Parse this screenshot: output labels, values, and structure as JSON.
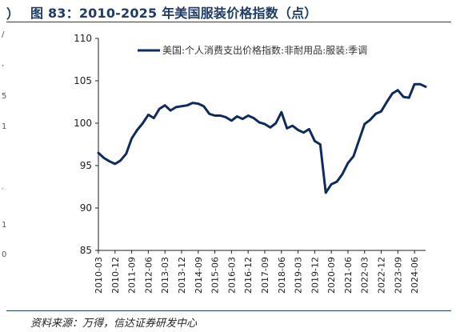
{
  "header": {
    "left_mark": "）",
    "title": "图 83：2010-2025 年美国服装价格指数（点）"
  },
  "left_fragments": [
    "/",
    "’",
    "5",
    "1",
    "′",
    "1",
    "0"
  ],
  "source": "资料来源：万得，信达证券研发中心",
  "chart_data": {
    "type": "line",
    "title": "",
    "xlabel": "",
    "ylabel": "",
    "ylim": [
      85,
      110
    ],
    "yticks": [
      85,
      90,
      95,
      100,
      105,
      110
    ],
    "grid": false,
    "legend_position": "top-left",
    "x_tick_labels": [
      "2010-03",
      "2010-12",
      "2011-09",
      "2012-06",
      "2013-03",
      "2013-12",
      "2014-09",
      "2015-06",
      "2016-03",
      "2016-12",
      "2017-09",
      "2018-06",
      "2019-03",
      "2019-12",
      "2020-09",
      "2021-06",
      "2022-03",
      "2022-12",
      "2023-09",
      "2024-06"
    ],
    "series": [
      {
        "name": "美国:个人消费支出价格指数:非耐用品:服装:季调",
        "color": "#0f2a5c",
        "x": [
          "2010-03",
          "2010-06",
          "2010-09",
          "2010-12",
          "2011-03",
          "2011-06",
          "2011-09",
          "2011-12",
          "2012-03",
          "2012-06",
          "2012-09",
          "2012-12",
          "2013-03",
          "2013-06",
          "2013-09",
          "2013-12",
          "2014-03",
          "2014-06",
          "2014-09",
          "2014-12",
          "2015-03",
          "2015-06",
          "2015-09",
          "2015-12",
          "2016-03",
          "2016-06",
          "2016-09",
          "2016-12",
          "2017-03",
          "2017-06",
          "2017-09",
          "2017-12",
          "2018-03",
          "2018-06",
          "2018-09",
          "2018-12",
          "2019-03",
          "2019-06",
          "2019-09",
          "2019-12",
          "2020-03",
          "2020-06",
          "2020-09",
          "2020-12",
          "2021-03",
          "2021-06",
          "2021-09",
          "2021-12",
          "2022-03",
          "2022-06",
          "2022-09",
          "2022-12",
          "2023-03",
          "2023-06",
          "2023-09",
          "2023-12",
          "2024-03",
          "2024-06",
          "2024-09",
          "2024-12"
        ],
        "values": [
          96.5,
          95.9,
          95.5,
          95.2,
          95.6,
          96.4,
          98.2,
          99.2,
          100.0,
          101.0,
          100.6,
          101.7,
          102.1,
          101.5,
          101.9,
          102.0,
          102.1,
          102.4,
          102.3,
          102.0,
          101.1,
          100.9,
          100.9,
          100.7,
          100.3,
          100.8,
          100.5,
          100.9,
          100.6,
          100.1,
          99.9,
          99.5,
          100.0,
          101.3,
          99.4,
          99.7,
          99.2,
          98.9,
          99.3,
          97.9,
          97.5,
          91.8,
          92.8,
          93.1,
          94.0,
          95.3,
          96.1,
          98.0,
          99.9,
          100.4,
          101.1,
          101.4,
          102.5,
          103.5,
          103.9,
          103.1,
          103.0,
          104.6,
          104.6,
          104.3
        ]
      }
    ]
  }
}
